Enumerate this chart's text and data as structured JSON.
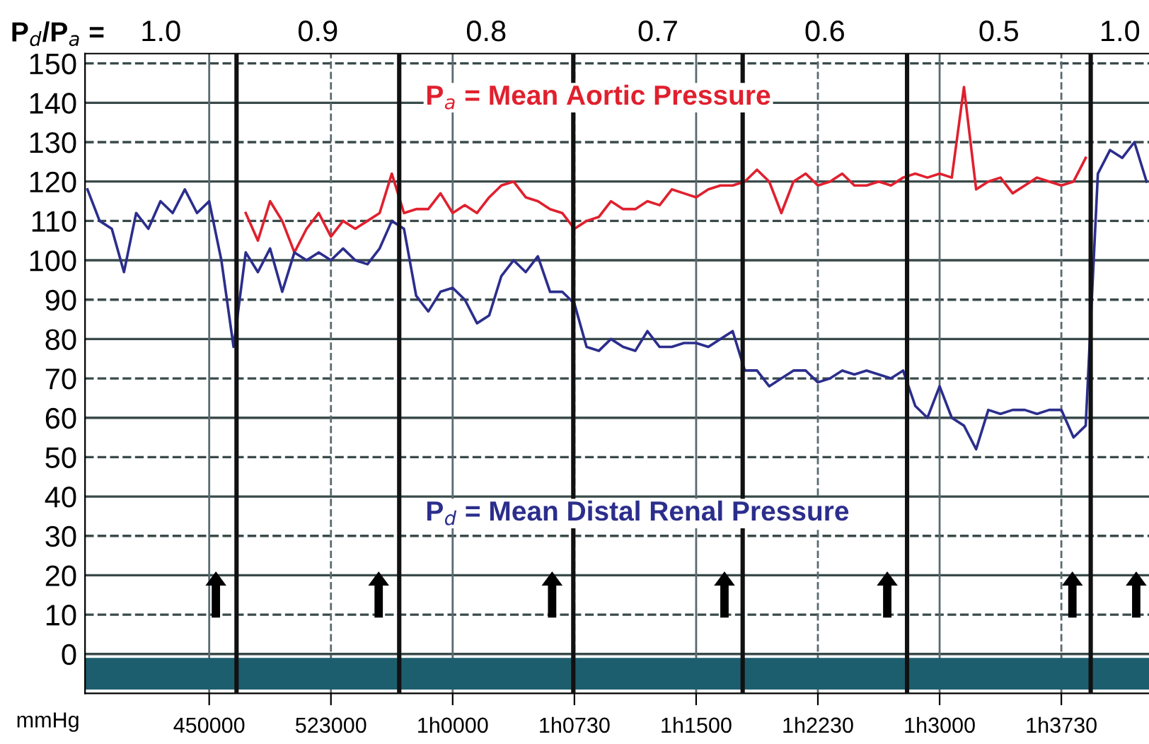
{
  "chart_data": {
    "type": "line",
    "x2label": "P$_{d}$/P$_{a}$ =",
    "ylabel": "mmHg",
    "categories": [
      null,
      null,
      null,
      null,
      null,
      null,
      null,
      null,
      null,
      null,
      "450000",
      null,
      null,
      null,
      null,
      null,
      null,
      null,
      null,
      null,
      "523000",
      null,
      null,
      null,
      null,
      null,
      null,
      null,
      null,
      null,
      "1h0000",
      null,
      null,
      null,
      null,
      null,
      null,
      null,
      null,
      null,
      "1h0730",
      null,
      null,
      null,
      null,
      null,
      null,
      null,
      null,
      null,
      "1h1500",
      null,
      null,
      null,
      null,
      null,
      null,
      null,
      null,
      null,
      "1h2230",
      null,
      null,
      null,
      null,
      null,
      null,
      null,
      null,
      null,
      "1h3000",
      null,
      null,
      null,
      null,
      null,
      null,
      null,
      null,
      null,
      "1h3730",
      null,
      null,
      null,
      null,
      null,
      null,
      null
    ],
    "ylim": [
      -10,
      152.5
    ],
    "yticks": [
      0,
      10,
      20,
      30,
      40,
      50,
      60,
      70,
      80,
      90,
      100,
      110,
      120,
      130,
      140,
      150
    ],
    "grid": true,
    "line_style": "solid",
    "annotations": [
      "1.0",
      "0.9",
      "0.8",
      "0.7",
      "0.6",
      "0.5",
      "1.0"
    ],
    "bands": [
      {
        "axis": "y",
        "from": -9,
        "to": -1,
        "color": "#1d5e6e"
      }
    ],
    "series": [
      {
        "name": "P$_{a}$ = Mean Aortic Pressure",
        "color": "#e0202e",
        "values": [
          null,
          null,
          null,
          null,
          null,
          null,
          null,
          null,
          null,
          null,
          null,
          null,
          null,
          112,
          105,
          115,
          110,
          102,
          108,
          112,
          106,
          110,
          108,
          110,
          112,
          122,
          112,
          113,
          113,
          117,
          112,
          114,
          112,
          116,
          119,
          120,
          116,
          115,
          113,
          112,
          108,
          110,
          111,
          115,
          113,
          113,
          115,
          114,
          118,
          117,
          116,
          118,
          119,
          119,
          120,
          123,
          120,
          112,
          120,
          122,
          119,
          120,
          122,
          119,
          119,
          120,
          119,
          121,
          122,
          121,
          122,
          121,
          144,
          118,
          120,
          121,
          117,
          119,
          121,
          120,
          119,
          120,
          126,
          null,
          null,
          null,
          null,
          null
        ]
      },
      {
        "name": "P$_{d}$ = Mean Distal Renal Pressure",
        "color": "#2b2e8c",
        "values": [
          118,
          110,
          108,
          97,
          112,
          108,
          115,
          112,
          118,
          112,
          115,
          100,
          78,
          102,
          97,
          103,
          92,
          102,
          100,
          102,
          100,
          103,
          100,
          99,
          103,
          110,
          108,
          91,
          87,
          92,
          93,
          90,
          84,
          86,
          96,
          100,
          97,
          101,
          92,
          92,
          89,
          78,
          77,
          80,
          78,
          77,
          82,
          78,
          78,
          79,
          79,
          78,
          80,
          82,
          72,
          72,
          68,
          70,
          72,
          72,
          69,
          70,
          72,
          71,
          72,
          71,
          70,
          72,
          63,
          60,
          68,
          60,
          58,
          52,
          62,
          61,
          62,
          62,
          61,
          62,
          62,
          55,
          58,
          122,
          128,
          126,
          130,
          120
        ]
      }
    ]
  }
}
